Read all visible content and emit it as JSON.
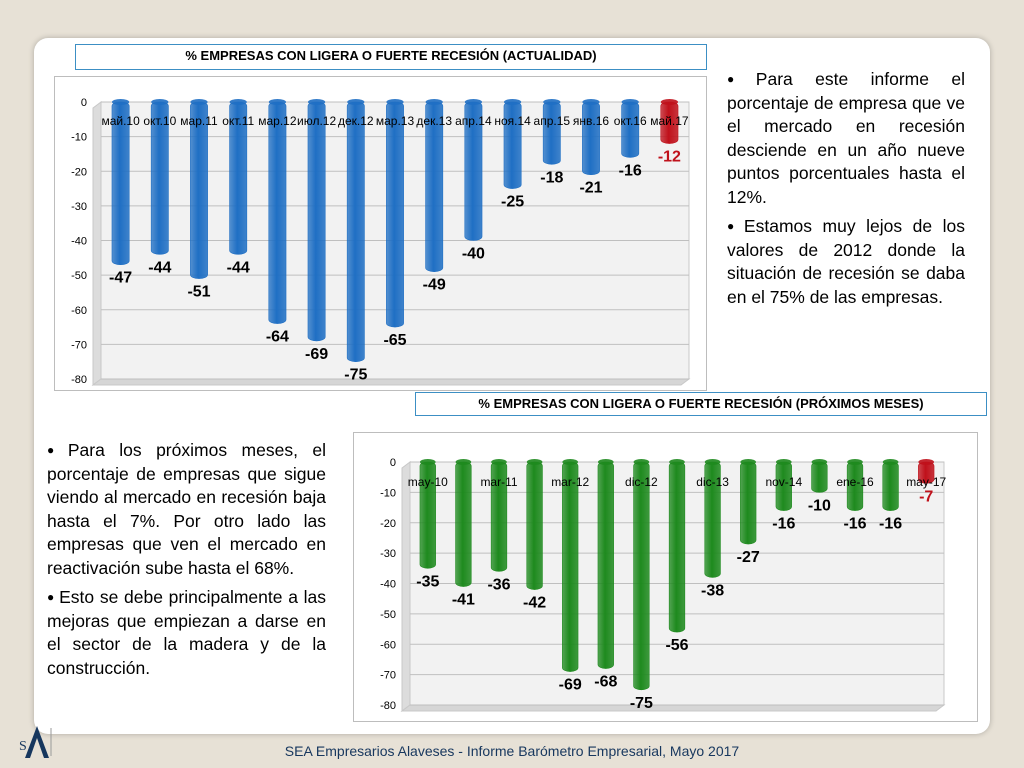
{
  "footer": "SEA Empresarios Alaveses  -  Informe Barómetro Empresarial, Mayo 2017",
  "logo": {
    "monogram": "SEA"
  },
  "text_top": [
    "Para este informe el porcentaje de empresa que ve el mercado en recesión desciende en un año nueve puntos porcentuales hasta el 12%.",
    "Estamos muy lejos de los valores de 2012 donde la situación de recesión se daba en el 75% de las empresas."
  ],
  "text_bottom": [
    "Para los próximos meses, el porcentaje de empresas que sigue viendo al mercado en recesión baja hasta el 7%. Por otro lado las empresas que ven el mercado en reactivación sube hasta el 68%.",
    "Esto se debe principalmente a las mejoras que empiezan a darse en el sector de la madera y de la construcción."
  ],
  "colors": {
    "blue": "#1f6fc4",
    "green": "#1e8a1e",
    "red": "#c0111b"
  },
  "chart_data": [
    {
      "type": "bar",
      "title": "% EMPRESAS CON LIGERA O FUERTE RECESIÓN (ACTUALIDAD)",
      "categories": [
        "май.10",
        "окт.10",
        "мар.11",
        "окт.11",
        "мар.12",
        "июл.12",
        "дек.12",
        "мар.13",
        "дек.13",
        "апр.14",
        "ноя.14",
        "апр.15",
        "янв.16",
        "окт.16",
        "май.17"
      ],
      "values": [
        -47,
        -44,
        -51,
        -44,
        -64,
        -69,
        -75,
        -65,
        -49,
        -40,
        -25,
        -18,
        -21,
        -16,
        -12
      ],
      "highlight_last": true,
      "ylim": [
        -80,
        0
      ],
      "yticks": [
        0,
        -10,
        -20,
        -30,
        -40,
        -50,
        -60,
        -70,
        -80
      ],
      "grid": true
    },
    {
      "type": "bar",
      "title": "% EMPRESAS CON LIGERA O FUERTE RECESIÓN (PRÓXIMOS MESES)",
      "categories": [
        "may-10",
        "",
        "mar-11",
        "",
        "mar-12",
        "",
        "dic-12",
        "",
        "dic-13",
        "",
        "nov-14",
        "",
        "ene-16",
        "",
        "may-17"
      ],
      "values": [
        -35,
        -41,
        -36,
        -42,
        -69,
        -68,
        -75,
        -56,
        -38,
        -27,
        -16,
        -10,
        -16,
        -16,
        -7
      ],
      "highlight_last": true,
      "ylim": [
        -80,
        0
      ],
      "yticks": [
        0,
        -10,
        -20,
        -30,
        -40,
        -50,
        -60,
        -70,
        -80
      ],
      "grid": true
    }
  ]
}
